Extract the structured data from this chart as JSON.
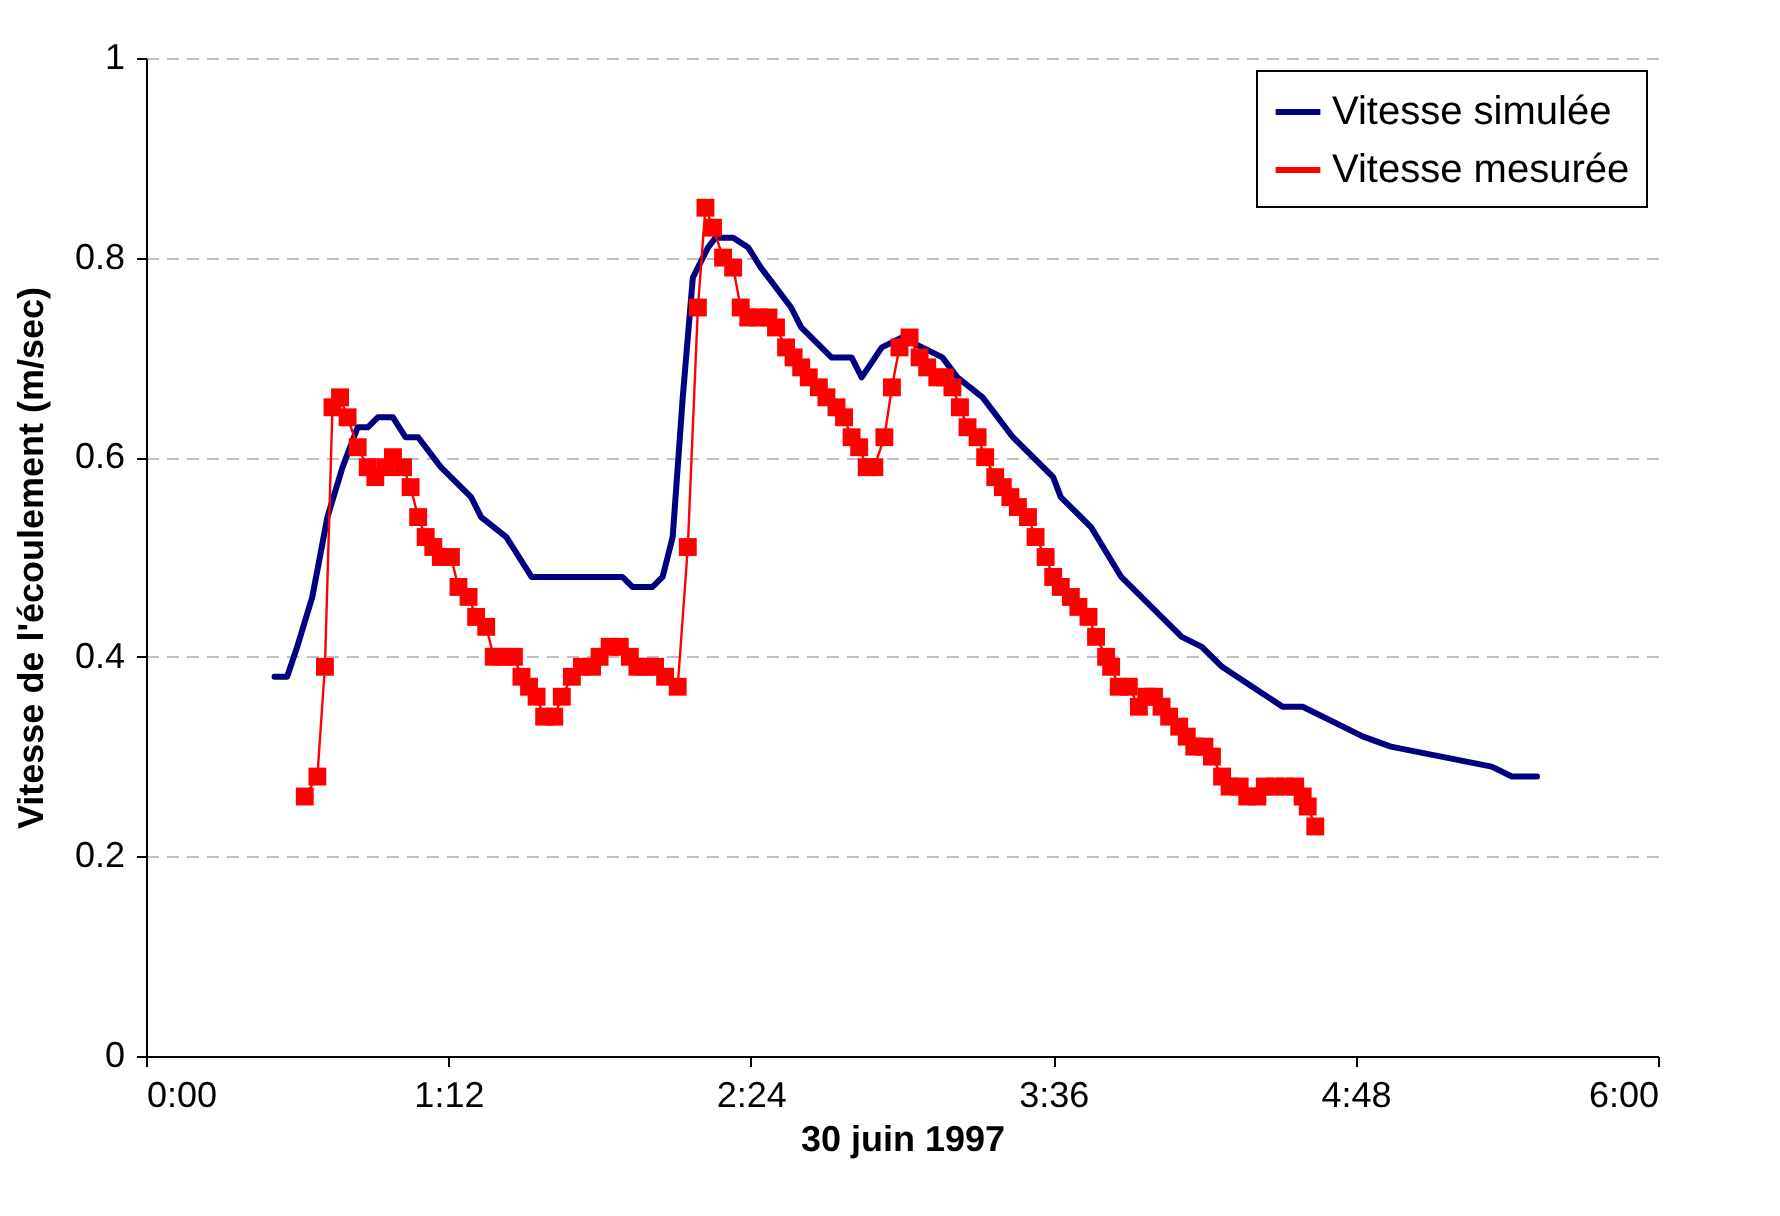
{
  "chart_data": {
    "type": "line",
    "xlabel": "30 juin 1997",
    "ylabel": "Vitesse de l'écoulement (m/sec)",
    "xlim": [
      0,
      6
    ],
    "xticks": [
      {
        "value": 0,
        "label": "0:00"
      },
      {
        "value": 1.2,
        "label": "1:12"
      },
      {
        "value": 2.4,
        "label": "2:24"
      },
      {
        "value": 3.6,
        "label": "3:36"
      },
      {
        "value": 4.8,
        "label": "4:48"
      },
      {
        "value": 6,
        "label": "6:00"
      }
    ],
    "ylim": [
      0,
      1
    ],
    "yticks": [
      0,
      0.2,
      0.4,
      0.6,
      0.8,
      1
    ],
    "grid": "y",
    "legend": "top right",
    "line_style": "solid",
    "series": [
      {
        "name": "Vitesse simulée",
        "color": "#000080",
        "marker": "none",
        "x": [
          0.51,
          0.56,
          0.6,
          0.66,
          0.72,
          0.78,
          0.84,
          0.88,
          0.92,
          0.98,
          1.03,
          1.08,
          1.17,
          1.29,
          1.33,
          1.43,
          1.53,
          1.89,
          1.93,
          2.01,
          2.05,
          2.09,
          2.13,
          2.17,
          2.23,
          2.26,
          2.33,
          2.39,
          2.44,
          2.56,
          2.6,
          2.72,
          2.8,
          2.84,
          2.92,
          3,
          3.08,
          3.16,
          3.22,
          3.32,
          3.44,
          3.6,
          3.63,
          3.75,
          3.87,
          4.03,
          4.11,
          4.19,
          4.27,
          4.39,
          4.51,
          4.59,
          4.75,
          4.83,
          4.94,
          5.14,
          5.34,
          5.42,
          5.52
        ],
        "values": [
          0.38,
          0.38,
          0.41,
          0.46,
          0.54,
          0.59,
          0.63,
          0.63,
          0.64,
          0.64,
          0.62,
          0.62,
          0.59,
          0.56,
          0.54,
          0.52,
          0.48,
          0.48,
          0.47,
          0.47,
          0.48,
          0.52,
          0.66,
          0.78,
          0.81,
          0.82,
          0.82,
          0.81,
          0.79,
          0.75,
          0.73,
          0.7,
          0.7,
          0.68,
          0.71,
          0.72,
          0.71,
          0.7,
          0.68,
          0.66,
          0.62,
          0.58,
          0.56,
          0.53,
          0.48,
          0.44,
          0.42,
          0.41,
          0.39,
          0.37,
          0.35,
          0.35,
          0.33,
          0.32,
          0.31,
          0.3,
          0.29,
          0.28,
          0.28
        ]
      },
      {
        "name": "Vitesse mesurée",
        "color": "#ff0000",
        "marker": "square",
        "x": [
          0.63,
          0.68,
          0.71,
          0.74,
          0.77,
          0.8,
          0.84,
          0.88,
          0.91,
          0.95,
          0.98,
          1.02,
          1.05,
          1.08,
          1.11,
          1.14,
          1.17,
          1.21,
          1.24,
          1.28,
          1.31,
          1.35,
          1.38,
          1.42,
          1.46,
          1.49,
          1.52,
          1.55,
          1.58,
          1.62,
          1.65,
          1.69,
          1.73,
          1.77,
          1.8,
          1.84,
          1.88,
          1.92,
          1.95,
          1.98,
          2.02,
          2.06,
          2.11,
          2.15,
          2.19,
          2.22,
          2.25,
          2.29,
          2.33,
          2.36,
          2.39,
          2.43,
          2.47,
          2.5,
          2.54,
          2.57,
          2.6,
          2.63,
          2.67,
          2.7,
          2.74,
          2.77,
          2.8,
          2.83,
          2.86,
          2.89,
          2.93,
          2.96,
          2.99,
          3.03,
          3.07,
          3.1,
          3.14,
          3.17,
          3.2,
          3.23,
          3.26,
          3.3,
          3.33,
          3.37,
          3.4,
          3.43,
          3.46,
          3.5,
          3.53,
          3.57,
          3.6,
          3.63,
          3.67,
          3.7,
          3.74,
          3.77,
          3.81,
          3.83,
          3.86,
          3.9,
          3.94,
          3.97,
          4,
          4.03,
          4.06,
          4.1,
          4.13,
          4.16,
          4.2,
          4.23,
          4.27,
          4.3,
          4.34,
          4.37,
          4.41,
          4.44,
          4.48,
          4.52,
          4.56,
          4.59,
          4.61,
          4.64
        ],
        "values": [
          0.26,
          0.28,
          0.39,
          0.65,
          0.66,
          0.64,
          0.61,
          0.59,
          0.58,
          0.59,
          0.6,
          0.59,
          0.57,
          0.54,
          0.52,
          0.51,
          0.5,
          0.5,
          0.47,
          0.46,
          0.44,
          0.43,
          0.4,
          0.4,
          0.4,
          0.38,
          0.37,
          0.36,
          0.34,
          0.34,
          0.36,
          0.38,
          0.39,
          0.39,
          0.4,
          0.41,
          0.41,
          0.4,
          0.39,
          0.39,
          0.39,
          0.38,
          0.37,
          0.51,
          0.75,
          0.85,
          0.83,
          0.8,
          0.79,
          0.75,
          0.74,
          0.74,
          0.74,
          0.73,
          0.71,
          0.7,
          0.69,
          0.68,
          0.67,
          0.66,
          0.65,
          0.64,
          0.62,
          0.61,
          0.59,
          0.59,
          0.62,
          0.67,
          0.71,
          0.72,
          0.7,
          0.69,
          0.68,
          0.68,
          0.67,
          0.65,
          0.63,
          0.62,
          0.6,
          0.58,
          0.57,
          0.56,
          0.55,
          0.54,
          0.52,
          0.5,
          0.48,
          0.47,
          0.46,
          0.45,
          0.44,
          0.42,
          0.4,
          0.39,
          0.37,
          0.37,
          0.35,
          0.36,
          0.36,
          0.35,
          0.34,
          0.33,
          0.32,
          0.31,
          0.31,
          0.3,
          0.28,
          0.27,
          0.27,
          0.26,
          0.26,
          0.27,
          0.27,
          0.27,
          0.27,
          0.26,
          0.25,
          0.23
        ]
      }
    ]
  }
}
